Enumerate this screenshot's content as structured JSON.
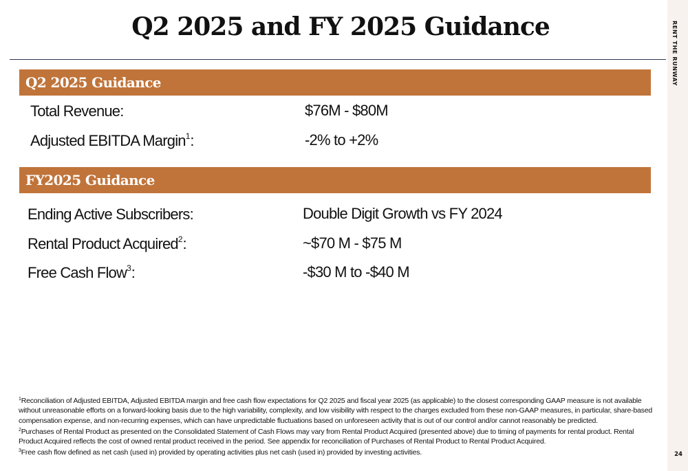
{
  "slide": {
    "title": "Q2 2025 and FY 2025 Guidance",
    "brand": "RENT THE RUNWAY",
    "page_number": "24"
  },
  "q2": {
    "heading": "Q2 2025 Guidance",
    "rows": [
      {
        "label": "Total Revenue:",
        "sup": "",
        "suffix": "",
        "value": "$76M - $80M"
      },
      {
        "label": "Adjusted EBITDA Margin",
        "sup": "1",
        "suffix": ":",
        "value": "-2% to +2%"
      }
    ]
  },
  "fy": {
    "heading": "FY2025 Guidance",
    "rows": [
      {
        "label": "Ending Active Subscribers:",
        "sup": "",
        "suffix": "",
        "value": "Double Digit Growth vs FY 2024"
      },
      {
        "label": "Rental Product Acquired",
        "sup": "2",
        "suffix": ":",
        "value": "~$70 M - $75 M"
      },
      {
        "label": "Free Cash Flow",
        "sup": "3",
        "suffix": ":",
        "value": "-$30 M to -$40 M"
      }
    ]
  },
  "footnotes": [
    {
      "num": "1",
      "text": "Reconciliation of Adjusted EBITDA, Adjusted EBITDA margin and free cash flow expectations for Q2 2025 and fiscal year 2025 (as applicable) to the closest corresponding GAAP measure is not available without unreasonable efforts on a forward-looking basis due to the high variability, complexity, and low visibility with respect to the charges excluded from these non-GAAP measures, in particular, share-based compensation expense, and non-recurring expenses, which can have unpredictable fluctuations based on unforeseen activity that is out of our control and/or cannot reasonably be predicted."
    },
    {
      "num": "2",
      "text": "Purchases of Rental Product as presented on the Consolidated Statement of Cash Flows may vary from Rental Product Acquired (presented above) due to timing of payments for rental product. Rental Product Acquired reflects the cost of owned rental product received in the period. See appendix for reconciliation of Purchases of Rental Product to Rental Product Acquired."
    },
    {
      "num": "3",
      "text": "Free cash flow defined as net cash (used in) provided by operating activities plus net cash (used in) provided by investing activities."
    }
  ]
}
